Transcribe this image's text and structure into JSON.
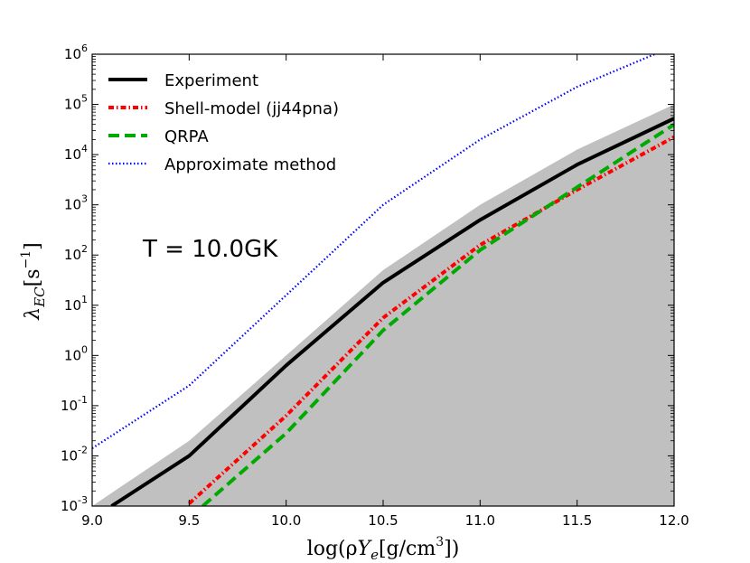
{
  "chart_data": {
    "type": "line",
    "xlabel": "log(ρY_e[g/cm^3])",
    "ylabel": "λ_EC[s^-1]",
    "xlim": [
      9.0,
      12.0
    ],
    "ylim_log10": [
      -3,
      6
    ],
    "x_ticks": [
      "9.0",
      "9.5",
      "10.0",
      "10.5",
      "11.0",
      "11.5",
      "12.0"
    ],
    "y_ticks": [
      {
        "base": "10",
        "exp": "-3"
      },
      {
        "base": "10",
        "exp": "-2"
      },
      {
        "base": "10",
        "exp": "-1"
      },
      {
        "base": "10",
        "exp": "0"
      },
      {
        "base": "10",
        "exp": "1"
      },
      {
        "base": "10",
        "exp": "2"
      },
      {
        "base": "10",
        "exp": "3"
      },
      {
        "base": "10",
        "exp": "4"
      },
      {
        "base": "10",
        "exp": "5"
      },
      {
        "base": "10",
        "exp": "6"
      }
    ],
    "annotation": "T = 10.0GK",
    "legend_position": "top-left",
    "shaded_band": {
      "name": "Experiment uncertainty band",
      "color": "#c0c0c0",
      "x": [
        9.0,
        9.5,
        10.0,
        10.5,
        11.0,
        11.5,
        12.0
      ],
      "log10_upper": [
        -3.0,
        -1.7,
        0.0,
        1.7,
        3.0,
        4.1,
        5.0
      ]
    },
    "series": [
      {
        "name": "Experiment",
        "color": "#000000",
        "style": "solid",
        "x": [
          9.1,
          9.5,
          10.0,
          10.5,
          11.0,
          11.5,
          12.0
        ],
        "log10_y": [
          -3.0,
          -2.0,
          -0.2,
          1.45,
          2.7,
          3.8,
          4.72
        ]
      },
      {
        "name": "Shell-model (jj44pna)",
        "color": "#ff0000",
        "style": "dashdot",
        "x": [
          9.5,
          10.0,
          10.5,
          11.0,
          11.5,
          12.0
        ],
        "log10_y": [
          -2.95,
          -1.2,
          0.75,
          2.2,
          3.3,
          4.35
        ]
      },
      {
        "name": "QRPA",
        "color": "#00aa00",
        "style": "dashed",
        "x": [
          9.57,
          10.0,
          10.5,
          11.0,
          11.5,
          12.0
        ],
        "log10_y": [
          -3.0,
          -1.55,
          0.5,
          2.1,
          3.35,
          4.6
        ]
      },
      {
        "name": "Approximate method",
        "color": "#0000ff",
        "style": "dotted",
        "x": [
          9.0,
          9.5,
          10.0,
          10.5,
          11.0,
          11.5,
          11.9
        ],
        "log10_y": [
          -1.85,
          -0.6,
          1.2,
          3.0,
          4.3,
          5.35,
          6.0
        ]
      }
    ]
  }
}
